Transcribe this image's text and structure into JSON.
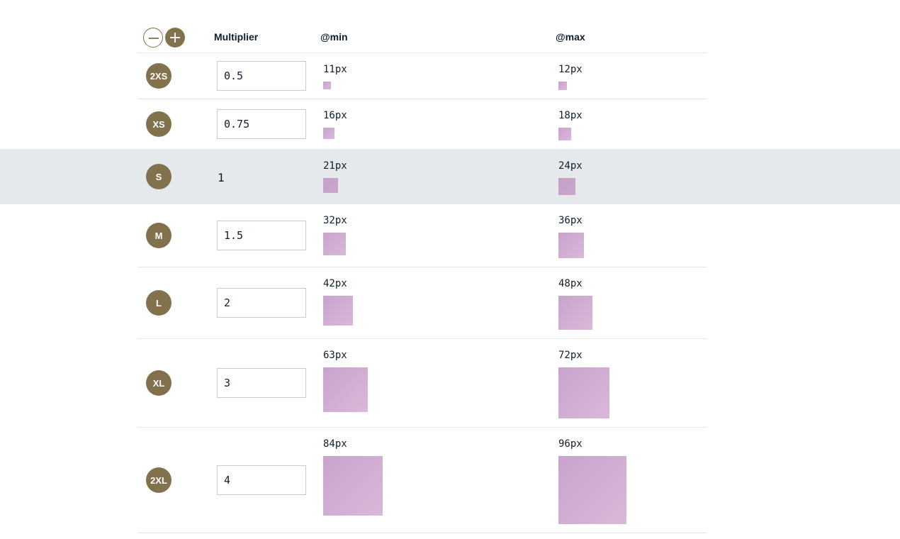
{
  "header": {
    "multiplier_label": "Multiplier",
    "min_label": "@min",
    "max_label": "@max",
    "remove_icon": "minus-circle-icon",
    "add_icon": "plus-circle-icon",
    "accent_color": "#82714d"
  },
  "rows": [
    {
      "step": "2XS",
      "multiplier": "0.5",
      "min": "11px",
      "max": "12px"
    },
    {
      "step": "XS",
      "multiplier": "0.75",
      "min": "16px",
      "max": "18px"
    },
    {
      "step": "S",
      "multiplier": "1",
      "min": "21px",
      "max": "24px"
    },
    {
      "step": "M",
      "multiplier": "1.5",
      "min": "32px",
      "max": "36px"
    },
    {
      "step": "L",
      "multiplier": "2",
      "min": "42px",
      "max": "48px"
    },
    {
      "step": "XL",
      "multiplier": "3",
      "min": "63px",
      "max": "72px"
    },
    {
      "step": "2XL",
      "multiplier": "4",
      "min": "84px",
      "max": "96px"
    }
  ]
}
